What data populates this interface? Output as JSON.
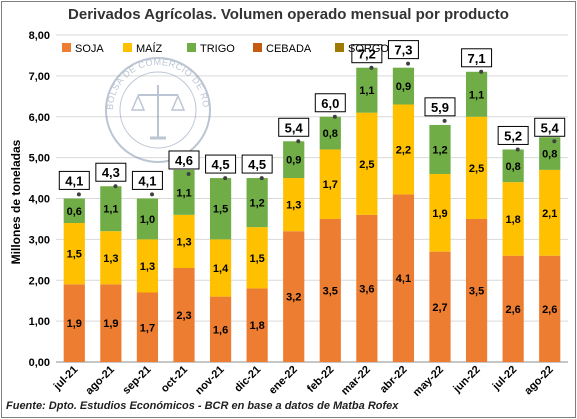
{
  "chart_data": {
    "type": "bar",
    "stacked": true,
    "title": "Derivados Agrícolas. Volumen operado mensual por producto",
    "ylabel": "Millones de toneladas",
    "xlabel": "",
    "ylim": [
      0,
      8
    ],
    "yticks": [
      "0,00",
      "1,00",
      "2,00",
      "3,00",
      "4,00",
      "5,00",
      "6,00",
      "7,00",
      "8,00"
    ],
    "grid": true,
    "legend_position": "top-left",
    "categories": [
      "jul-21",
      "ago-21",
      "sep-21",
      "oct-21",
      "nov-21",
      "dic-21",
      "ene-22",
      "feb-22",
      "mar-22",
      "abr-22",
      "may-22",
      "jun-22",
      "jul-22",
      "ago-22"
    ],
    "series": [
      {
        "name": "SOJA",
        "color": "#ed7d31",
        "values": [
          1.9,
          1.9,
          1.7,
          2.3,
          1.6,
          1.8,
          3.2,
          3.5,
          3.6,
          4.1,
          2.7,
          3.5,
          2.6,
          2.6
        ]
      },
      {
        "name": "MAÍZ",
        "color": "#ffc000",
        "values": [
          1.5,
          1.3,
          1.3,
          1.3,
          1.4,
          1.5,
          1.3,
          1.7,
          2.5,
          2.2,
          1.9,
          2.5,
          1.8,
          2.1
        ]
      },
      {
        "name": "TRIGO",
        "color": "#70ad47",
        "values": [
          0.6,
          1.1,
          1.0,
          1.1,
          1.5,
          1.2,
          0.9,
          0.8,
          1.1,
          0.9,
          1.2,
          1.1,
          0.8,
          0.8
        ]
      },
      {
        "name": "CEBADA",
        "color": "#c55a11",
        "values": [
          0,
          0,
          0,
          0,
          0,
          0,
          0,
          0,
          0,
          0,
          0,
          0,
          0,
          0
        ]
      },
      {
        "name": "SORGO",
        "color": "#9c7b00",
        "values": [
          0,
          0,
          0,
          0,
          0,
          0,
          0,
          0,
          0,
          0,
          0,
          0,
          0,
          0
        ]
      }
    ],
    "segment_labels": [
      [
        "1,9",
        "1,9",
        "1,7",
        "2,3",
        "1,6",
        "1,8",
        "3,2",
        "3,5",
        "3,6",
        "4,1",
        "2,7",
        "3,5",
        "2,6",
        "2,6"
      ],
      [
        "1,5",
        "1,3",
        "1,3",
        "1,3",
        "1,4",
        "1,5",
        "1,3",
        "1,7",
        "2,5",
        "2,2",
        "1,9",
        "2,5",
        "1,8",
        "2,1"
      ],
      [
        "0,6",
        "1,1",
        "1,0",
        "1,1",
        "1,5",
        "1,2",
        "0,9",
        "0,8",
        "1,1",
        "0,9",
        "1,2",
        "1,1",
        "0,8",
        "0,8"
      ]
    ],
    "totals": [
      4.1,
      4.3,
      4.1,
      4.6,
      4.5,
      4.5,
      5.4,
      6.0,
      7.2,
      7.3,
      5.9,
      7.1,
      5.2,
      5.4
    ],
    "total_labels": [
      "4,1",
      "4,3",
      "4,1",
      "4,6",
      "4,5",
      "4,5",
      "5,4",
      "6,0",
      "7,2",
      "7,3",
      "5,9",
      "7,1",
      "5,2",
      "5,4"
    ]
  },
  "watermark_text": "BOLSA DE COMERCIO DE ROSARIO",
  "source_text": "Fuente: Dpto. Estudios Económicos - BCR en base a datos de Matba Rofex"
}
